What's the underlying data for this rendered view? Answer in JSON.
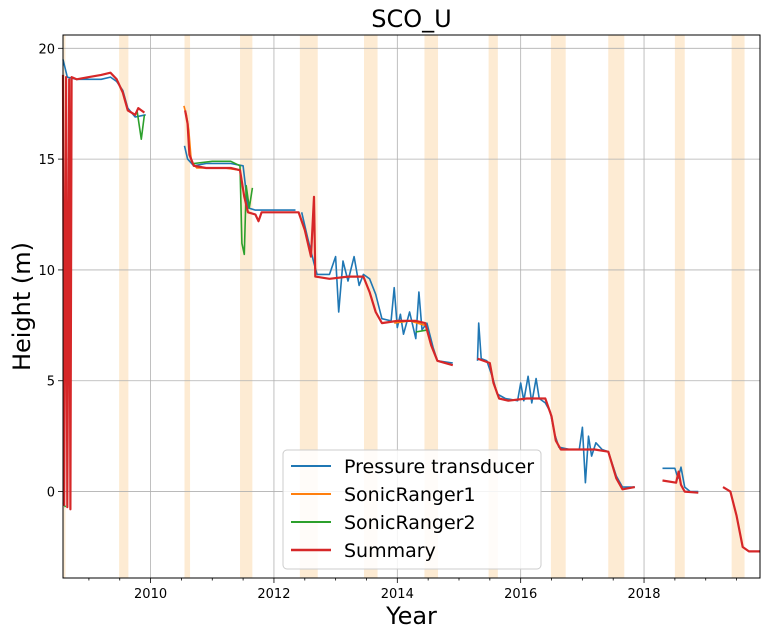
{
  "chart_data": {
    "type": "line",
    "title": "SCO_U",
    "xlabel": "Year",
    "ylabel": "Height (m)",
    "xlim": [
      2008.58,
      2019.88
    ],
    "ylim": [
      -3.9,
      20.6
    ],
    "x_ticks": [
      2010,
      2012,
      2014,
      2016,
      2018
    ],
    "x_tick_labels": [
      "2010",
      "2012",
      "2014",
      "2016",
      "2018"
    ],
    "y_ticks": [
      0,
      5,
      10,
      15,
      20
    ],
    "y_tick_labels": [
      "0",
      "5",
      "10",
      "15",
      "20"
    ],
    "grid": true,
    "legend_position": "lower-center",
    "melt_seasons": [
      [
        2008.58,
        2008.62
      ],
      [
        2009.49,
        2009.64
      ],
      [
        2010.55,
        2010.64
      ],
      [
        2011.45,
        2011.65
      ],
      [
        2012.42,
        2012.71
      ],
      [
        2013.46,
        2013.68
      ],
      [
        2014.44,
        2014.66
      ],
      [
        2015.48,
        2015.63
      ],
      [
        2016.49,
        2016.73
      ],
      [
        2017.42,
        2017.68
      ],
      [
        2018.5,
        2018.66
      ],
      [
        2019.42,
        2019.63
      ]
    ],
    "shade_color": "#fdebd3",
    "series": [
      {
        "name": "Pressure transducer",
        "color": "#1f77b4",
        "segments": [
          [
            [
              2008.58,
              19.5
            ],
            [
              2008.65,
              18.7
            ],
            [
              2008.8,
              18.6
            ],
            [
              2009.0,
              18.6
            ],
            [
              2009.2,
              18.6
            ],
            [
              2009.35,
              18.7
            ],
            [
              2009.45,
              18.5
            ],
            [
              2009.55,
              18.1
            ],
            [
              2009.63,
              17.3
            ],
            [
              2009.75,
              16.9
            ],
            [
              2009.92,
              17.0
            ]
          ],
          [
            [
              2010.55,
              15.6
            ],
            [
              2010.6,
              15.0
            ],
            [
              2010.7,
              14.7
            ],
            [
              2010.9,
              14.8
            ],
            [
              2011.1,
              14.8
            ],
            [
              2011.3,
              14.8
            ],
            [
              2011.5,
              14.7
            ],
            [
              2011.58,
              12.8
            ],
            [
              2011.7,
              12.7
            ],
            [
              2011.9,
              12.7
            ],
            [
              2012.1,
              12.7
            ],
            [
              2012.35,
              12.7
            ]
          ],
          [
            [
              2012.45,
              12.6
            ],
            [
              2012.55,
              11.4
            ],
            [
              2012.65,
              10.3
            ],
            [
              2012.7,
              9.8
            ],
            [
              2012.9,
              9.8
            ],
            [
              2013.0,
              10.6
            ],
            [
              2013.05,
              8.1
            ],
            [
              2013.12,
              10.4
            ],
            [
              2013.2,
              9.5
            ],
            [
              2013.3,
              10.6
            ],
            [
              2013.38,
              9.3
            ],
            [
              2013.45,
              9.8
            ],
            [
              2013.55,
              9.6
            ],
            [
              2013.65,
              8.9
            ],
            [
              2013.75,
              7.8
            ],
            [
              2013.9,
              7.7
            ],
            [
              2013.95,
              9.2
            ],
            [
              2014.0,
              7.4
            ],
            [
              2014.05,
              8.0
            ],
            [
              2014.1,
              7.1
            ],
            [
              2014.2,
              8.1
            ],
            [
              2014.3,
              6.9
            ],
            [
              2014.35,
              9.0
            ],
            [
              2014.4,
              7.3
            ],
            [
              2014.48,
              7.6
            ],
            [
              2014.58,
              6.5
            ],
            [
              2014.65,
              5.9
            ],
            [
              2014.9,
              5.8
            ]
          ],
          [
            [
              2015.3,
              5.9
            ],
            [
              2015.32,
              7.6
            ],
            [
              2015.36,
              6.0
            ],
            [
              2015.45,
              5.9
            ],
            [
              2015.55,
              5.1
            ],
            [
              2015.62,
              4.4
            ],
            [
              2015.75,
              4.2
            ],
            [
              2015.95,
              4.1
            ],
            [
              2016.0,
              4.9
            ],
            [
              2016.05,
              4.1
            ],
            [
              2016.12,
              5.2
            ],
            [
              2016.18,
              4.0
            ],
            [
              2016.25,
              5.1
            ],
            [
              2016.3,
              4.2
            ],
            [
              2016.4,
              4.0
            ],
            [
              2016.48,
              3.6
            ],
            [
              2016.55,
              2.6
            ],
            [
              2016.62,
              2.0
            ],
            [
              2016.8,
              1.9
            ],
            [
              2016.95,
              1.9
            ],
            [
              2017.0,
              2.9
            ],
            [
              2017.05,
              0.4
            ],
            [
              2017.1,
              2.5
            ],
            [
              2017.15,
              1.6
            ],
            [
              2017.22,
              2.2
            ],
            [
              2017.32,
              1.9
            ],
            [
              2017.42,
              1.8
            ],
            [
              2017.55,
              0.7
            ],
            [
              2017.65,
              0.2
            ],
            [
              2017.85,
              0.2
            ]
          ],
          [
            [
              2018.3,
              1.05
            ],
            [
              2018.5,
              1.05
            ],
            [
              2018.55,
              0.6
            ],
            [
              2018.6,
              1.1
            ],
            [
              2018.66,
              0.2
            ],
            [
              2018.75,
              0.0
            ],
            [
              2018.88,
              0.0
            ]
          ]
        ]
      },
      {
        "name": "SonicRanger1",
        "color": "#ff7f0e",
        "segments": [
          [
            [
              2010.54,
              17.4
            ],
            [
              2010.58,
              17.0
            ],
            [
              2010.62,
              16.3
            ],
            [
              2010.66,
              14.9
            ],
            [
              2010.75,
              14.6
            ],
            [
              2011.0,
              14.6
            ],
            [
              2011.2,
              14.6
            ],
            [
              2011.45,
              14.5
            ]
          ],
          [
            [
              2013.95,
              7.6
            ],
            [
              2014.2,
              7.7
            ],
            [
              2014.45,
              7.5
            ]
          ]
        ]
      },
      {
        "name": "SonicRanger2",
        "color": "#2ca02c",
        "segments": [
          [
            [
              2008.58,
              -0.5
            ],
            [
              2008.62,
              -0.7
            ]
          ],
          [
            [
              2009.78,
              17.2
            ],
            [
              2009.85,
              15.9
            ],
            [
              2009.9,
              17.0
            ]
          ],
          [
            [
              2010.7,
              14.8
            ],
            [
              2011.0,
              14.9
            ],
            [
              2011.3,
              14.9
            ],
            [
              2011.45,
              14.7
            ],
            [
              2011.48,
              11.2
            ],
            [
              2011.52,
              10.7
            ],
            [
              2011.55,
              13.8
            ],
            [
              2011.6,
              12.8
            ],
            [
              2011.65,
              13.7
            ]
          ],
          [
            [
              2014.3,
              7.2
            ],
            [
              2014.5,
              7.3
            ]
          ]
        ]
      },
      {
        "name": "Summary",
        "color": "#d62728",
        "segments": [
          [
            [
              2008.58,
              18.8
            ],
            [
              2008.6,
              -0.6
            ],
            [
              2008.63,
              18.7
            ],
            [
              2008.65,
              -0.7
            ],
            [
              2008.68,
              18.6
            ],
            [
              2008.7,
              -0.8
            ],
            [
              2008.72,
              18.7
            ],
            [
              2008.8,
              18.6
            ],
            [
              2009.0,
              18.7
            ],
            [
              2009.2,
              18.8
            ],
            [
              2009.35,
              18.9
            ],
            [
              2009.45,
              18.6
            ],
            [
              2009.55,
              18.0
            ],
            [
              2009.63,
              17.2
            ],
            [
              2009.75,
              17.0
            ],
            [
              2009.8,
              17.3
            ],
            [
              2009.9,
              17.1
            ]
          ],
          [
            [
              2010.56,
              17.2
            ],
            [
              2010.6,
              16.6
            ],
            [
              2010.63,
              15.2
            ],
            [
              2010.7,
              14.7
            ],
            [
              2010.9,
              14.6
            ],
            [
              2011.1,
              14.6
            ],
            [
              2011.3,
              14.6
            ],
            [
              2011.45,
              14.5
            ],
            [
              2011.52,
              13.3
            ],
            [
              2011.58,
              12.6
            ],
            [
              2011.7,
              12.5
            ],
            [
              2011.75,
              12.2
            ],
            [
              2011.8,
              12.6
            ],
            [
              2012.0,
              12.6
            ],
            [
              2012.2,
              12.6
            ],
            [
              2012.4,
              12.6
            ],
            [
              2012.5,
              11.8
            ],
            [
              2012.6,
              10.6
            ],
            [
              2012.65,
              13.3
            ],
            [
              2012.67,
              9.7
            ],
            [
              2012.9,
              9.6
            ],
            [
              2013.2,
              9.7
            ],
            [
              2013.45,
              9.7
            ],
            [
              2013.55,
              9.0
            ],
            [
              2013.65,
              8.1
            ],
            [
              2013.75,
              7.6
            ],
            [
              2014.0,
              7.7
            ],
            [
              2014.3,
              7.7
            ],
            [
              2014.45,
              7.6
            ],
            [
              2014.55,
              6.6
            ],
            [
              2014.65,
              5.9
            ],
            [
              2014.9,
              5.7
            ]
          ],
          [
            [
              2015.3,
              6.0
            ],
            [
              2015.5,
              5.8
            ],
            [
              2015.56,
              4.9
            ],
            [
              2015.65,
              4.2
            ],
            [
              2015.8,
              4.1
            ],
            [
              2016.1,
              4.2
            ],
            [
              2016.4,
              4.2
            ],
            [
              2016.5,
              3.4
            ],
            [
              2016.57,
              2.3
            ],
            [
              2016.65,
              1.9
            ],
            [
              2016.9,
              1.9
            ],
            [
              2017.2,
              1.9
            ],
            [
              2017.42,
              1.8
            ],
            [
              2017.55,
              0.6
            ],
            [
              2017.65,
              0.1
            ],
            [
              2017.85,
              0.2
            ]
          ],
          [
            [
              2018.3,
              0.5
            ],
            [
              2018.52,
              0.4
            ],
            [
              2018.56,
              0.9
            ],
            [
              2018.6,
              0.3
            ],
            [
              2018.66,
              0.0
            ],
            [
              2018.88,
              -0.05
            ]
          ],
          [
            [
              2019.28,
              0.2
            ],
            [
              2019.4,
              0.0
            ],
            [
              2019.5,
              -1.1
            ],
            [
              2019.6,
              -2.5
            ],
            [
              2019.7,
              -2.7
            ],
            [
              2019.88,
              -2.7
            ]
          ]
        ]
      }
    ]
  }
}
